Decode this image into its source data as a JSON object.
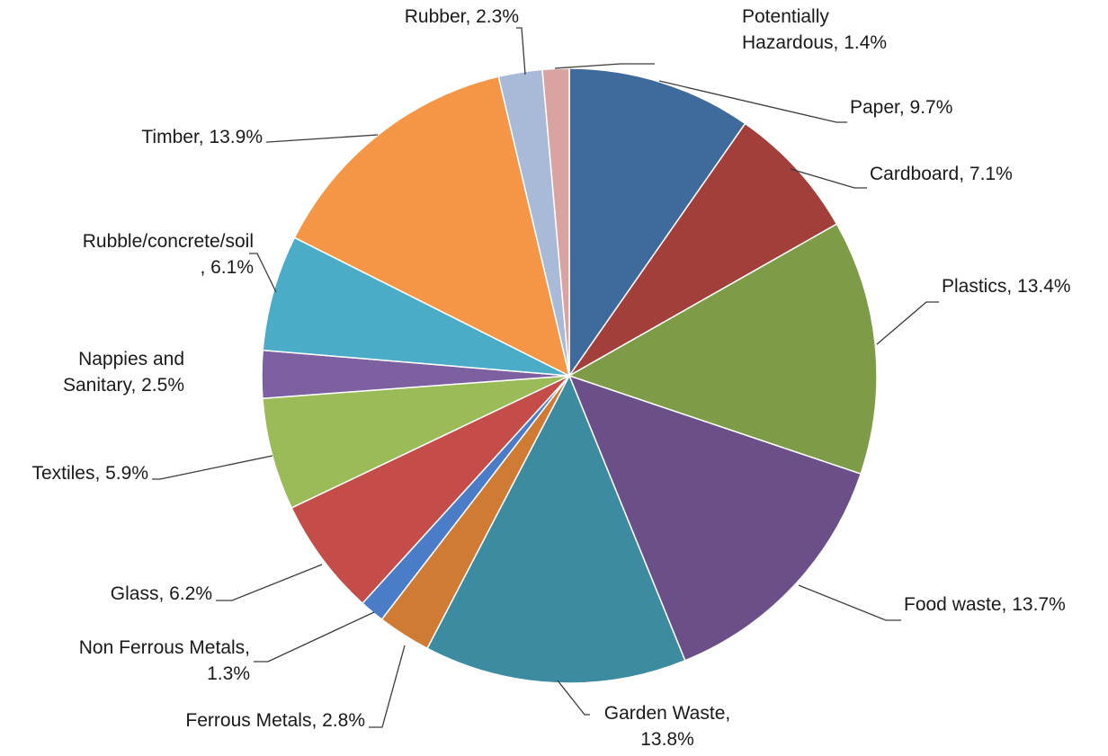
{
  "chart_data": {
    "type": "pie",
    "start_angle_deg": 0,
    "direction": "clockwise",
    "slices": [
      {
        "label": [
          "Paper, 9.7%"
        ],
        "value": 9.7,
        "color": "#3E6A9C"
      },
      {
        "label": [
          "Cardboard, 7.1%"
        ],
        "value": 7.1,
        "color": "#A23F3B"
      },
      {
        "label": [
          "Plastics, 13.4%"
        ],
        "value": 13.4,
        "color": "#7E9C47"
      },
      {
        "label": [
          "Food waste, 13.7%"
        ],
        "value": 13.7,
        "color": "#6A4F88"
      },
      {
        "label": [
          "Garden Waste,",
          "13.8%"
        ],
        "value": 13.8,
        "color": "#3D8BA1"
      },
      {
        "label": [
          "Ferrous Metals, 2.8%"
        ],
        "value": 2.8,
        "color": "#D07B34"
      },
      {
        "label": [
          "Non Ferrous Metals,",
          "1.3%"
        ],
        "value": 1.3,
        "color": "#4A7CC7"
      },
      {
        "label": [
          "Glass, 6.2%"
        ],
        "value": 6.2,
        "color": "#C44D4A"
      },
      {
        "label": [
          "Textiles, 5.9%"
        ],
        "value": 5.9,
        "color": "#9BBB58"
      },
      {
        "label": [
          "Nappies and",
          "Sanitary, 2.5%"
        ],
        "value": 2.5,
        "color": "#7D60A0"
      },
      {
        "label": [
          "Rubble/concrete/soil",
          ", 6.1%"
        ],
        "value": 6.1,
        "color": "#4AACC6"
      },
      {
        "label": [
          "Timber, 13.9%"
        ],
        "value": 13.9,
        "color": "#F59646"
      },
      {
        "label": [
          "Rubber, 2.3%"
        ],
        "value": 2.3,
        "color": "#A8BAD8"
      },
      {
        "label": [
          "Potentially",
          "Hazardous, 1.4%"
        ],
        "value": 1.4,
        "color": "#D9A3A2"
      }
    ]
  }
}
